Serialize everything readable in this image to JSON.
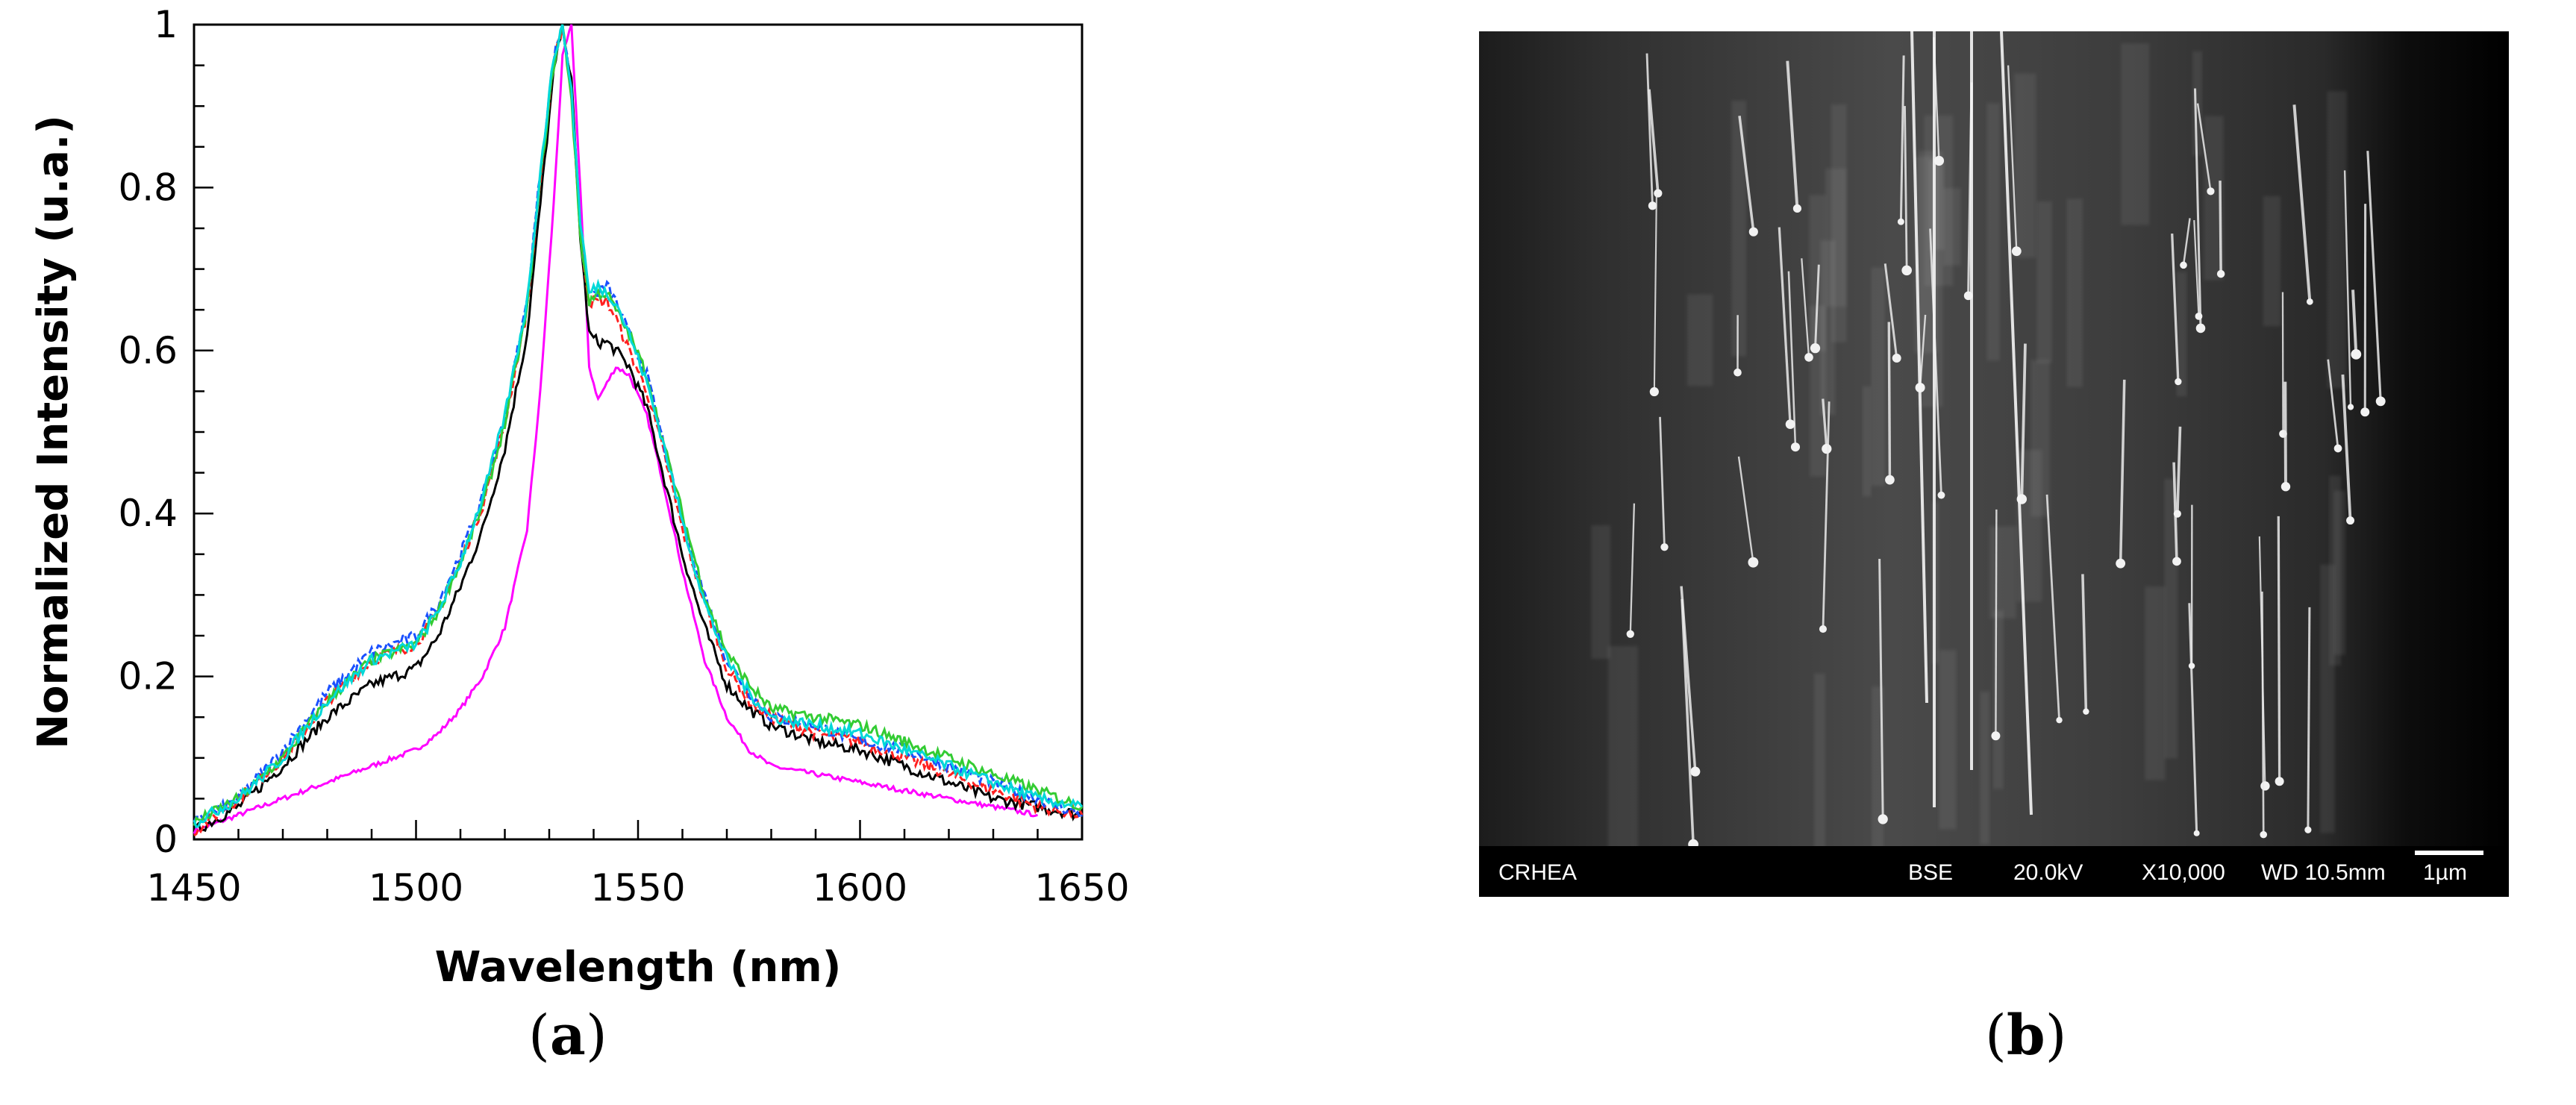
{
  "panels": {
    "a_label_open": "(",
    "a_label_letter": "a",
    "a_label_close": ")",
    "b_label_open": "(",
    "b_label_letter": "b",
    "b_label_close": ")"
  },
  "chart_data": {
    "type": "line",
    "title": "",
    "xlabel": "Wavelength (nm)",
    "ylabel": "Normalized Intensity (u.a.)",
    "xlim": [
      1450,
      1650
    ],
    "ylim": [
      0,
      1
    ],
    "xticks": [
      1450,
      1500,
      1550,
      1600,
      1650
    ],
    "xtick_labels": [
      "1450",
      "1500",
      "1550",
      "1600",
      "1650"
    ],
    "yticks": [
      0,
      0.2,
      0.4,
      0.6,
      0.8,
      1
    ],
    "ytick_labels": [
      "0",
      "0.2",
      "0.4",
      "0.6",
      "0.8",
      "1"
    ],
    "grid": false,
    "series": [
      {
        "color": "#ff00ff",
        "x": [
          1450,
          1460,
          1470,
          1480,
          1490,
          1500,
          1505,
          1510,
          1515,
          1520,
          1525,
          1528,
          1531,
          1533,
          1535,
          1537,
          1539,
          1541,
          1543,
          1545,
          1548,
          1552,
          1556,
          1560,
          1565,
          1570,
          1575,
          1580,
          1590,
          1600,
          1610,
          1620,
          1630,
          1640
        ],
        "y": [
          0.01,
          0.03,
          0.05,
          0.07,
          0.09,
          0.11,
          0.13,
          0.16,
          0.2,
          0.26,
          0.38,
          0.55,
          0.78,
          0.96,
          1.0,
          0.8,
          0.58,
          0.54,
          0.56,
          0.58,
          0.57,
          0.52,
          0.43,
          0.33,
          0.22,
          0.15,
          0.11,
          0.09,
          0.08,
          0.07,
          0.06,
          0.05,
          0.04,
          0.03
        ]
      },
      {
        "color": "#000000",
        "x": [
          1450,
          1460,
          1470,
          1480,
          1490,
          1500,
          1505,
          1510,
          1515,
          1520,
          1525,
          1528,
          1531,
          1533,
          1535,
          1537,
          1539,
          1541,
          1543,
          1545,
          1548,
          1552,
          1556,
          1560,
          1565,
          1570,
          1575,
          1580,
          1590,
          1600,
          1610,
          1620,
          1630,
          1640,
          1650
        ],
        "y": [
          0.01,
          0.04,
          0.09,
          0.15,
          0.19,
          0.21,
          0.25,
          0.31,
          0.38,
          0.48,
          0.62,
          0.78,
          0.94,
          1.0,
          0.93,
          0.74,
          0.62,
          0.61,
          0.61,
          0.6,
          0.58,
          0.53,
          0.44,
          0.35,
          0.26,
          0.19,
          0.16,
          0.14,
          0.12,
          0.11,
          0.09,
          0.07,
          0.05,
          0.04,
          0.03
        ]
      },
      {
        "color": "#ff2020",
        "x": [
          1450,
          1460,
          1470,
          1480,
          1490,
          1500,
          1505,
          1510,
          1515,
          1520,
          1525,
          1528,
          1531,
          1533,
          1535,
          1537,
          1539,
          1541,
          1543,
          1545,
          1548,
          1552,
          1556,
          1560,
          1565,
          1570,
          1575,
          1580,
          1590,
          1600,
          1610,
          1620,
          1630,
          1640,
          1650
        ],
        "y": [
          0.01,
          0.05,
          0.1,
          0.17,
          0.22,
          0.24,
          0.28,
          0.34,
          0.41,
          0.51,
          0.65,
          0.81,
          0.95,
          1.0,
          0.92,
          0.74,
          0.66,
          0.66,
          0.66,
          0.64,
          0.6,
          0.55,
          0.47,
          0.38,
          0.29,
          0.21,
          0.17,
          0.15,
          0.13,
          0.12,
          0.1,
          0.08,
          0.06,
          0.04,
          0.03
        ]
      },
      {
        "color": "#1a50ff",
        "x": [
          1450,
          1460,
          1470,
          1480,
          1490,
          1500,
          1505,
          1510,
          1515,
          1520,
          1525,
          1528,
          1531,
          1533,
          1535,
          1537,
          1539,
          1541,
          1543,
          1545,
          1548,
          1552,
          1556,
          1560,
          1565,
          1570,
          1575,
          1580,
          1590,
          1600,
          1610,
          1620,
          1630,
          1640,
          1650
        ],
        "y": [
          0.02,
          0.05,
          0.11,
          0.18,
          0.23,
          0.25,
          0.29,
          0.35,
          0.42,
          0.52,
          0.66,
          0.82,
          0.96,
          1.0,
          0.92,
          0.75,
          0.67,
          0.67,
          0.68,
          0.66,
          0.62,
          0.57,
          0.48,
          0.39,
          0.3,
          0.22,
          0.18,
          0.15,
          0.14,
          0.12,
          0.11,
          0.09,
          0.07,
          0.05,
          0.03
        ]
      },
      {
        "color": "#33cc33",
        "x": [
          1450,
          1460,
          1470,
          1480,
          1490,
          1500,
          1505,
          1510,
          1515,
          1520,
          1525,
          1528,
          1531,
          1533,
          1535,
          1537,
          1539,
          1541,
          1543,
          1545,
          1548,
          1552,
          1556,
          1560,
          1565,
          1570,
          1575,
          1580,
          1590,
          1600,
          1610,
          1620,
          1630,
          1640,
          1650
        ],
        "y": [
          0.02,
          0.05,
          0.1,
          0.17,
          0.22,
          0.24,
          0.28,
          0.34,
          0.41,
          0.51,
          0.65,
          0.81,
          0.95,
          1.0,
          0.91,
          0.74,
          0.66,
          0.67,
          0.67,
          0.65,
          0.62,
          0.57,
          0.48,
          0.4,
          0.3,
          0.23,
          0.19,
          0.16,
          0.15,
          0.14,
          0.12,
          0.1,
          0.08,
          0.06,
          0.04
        ]
      },
      {
        "color": "#00d8d8",
        "x": [
          1450,
          1460,
          1470,
          1480,
          1490,
          1500,
          1505,
          1510,
          1515,
          1520,
          1525,
          1528,
          1531,
          1533,
          1535,
          1537,
          1539,
          1541,
          1543,
          1545,
          1548,
          1552,
          1556,
          1560,
          1565,
          1570,
          1575,
          1580,
          1590,
          1600,
          1610,
          1620,
          1630,
          1640,
          1650
        ],
        "y": [
          0.02,
          0.05,
          0.1,
          0.17,
          0.22,
          0.24,
          0.28,
          0.34,
          0.42,
          0.52,
          0.66,
          0.82,
          0.96,
          1.0,
          0.92,
          0.76,
          0.67,
          0.68,
          0.67,
          0.66,
          0.62,
          0.56,
          0.48,
          0.39,
          0.29,
          0.22,
          0.18,
          0.15,
          0.14,
          0.13,
          0.11,
          0.09,
          0.07,
          0.05,
          0.04
        ]
      }
    ]
  },
  "sem": {
    "bar_left": "CRHEA",
    "detector": "BSE",
    "voltage": "20.0kV",
    "magnification": "X10,000",
    "working_distance": "WD 10.5mm",
    "scale_label": "1µm"
  }
}
